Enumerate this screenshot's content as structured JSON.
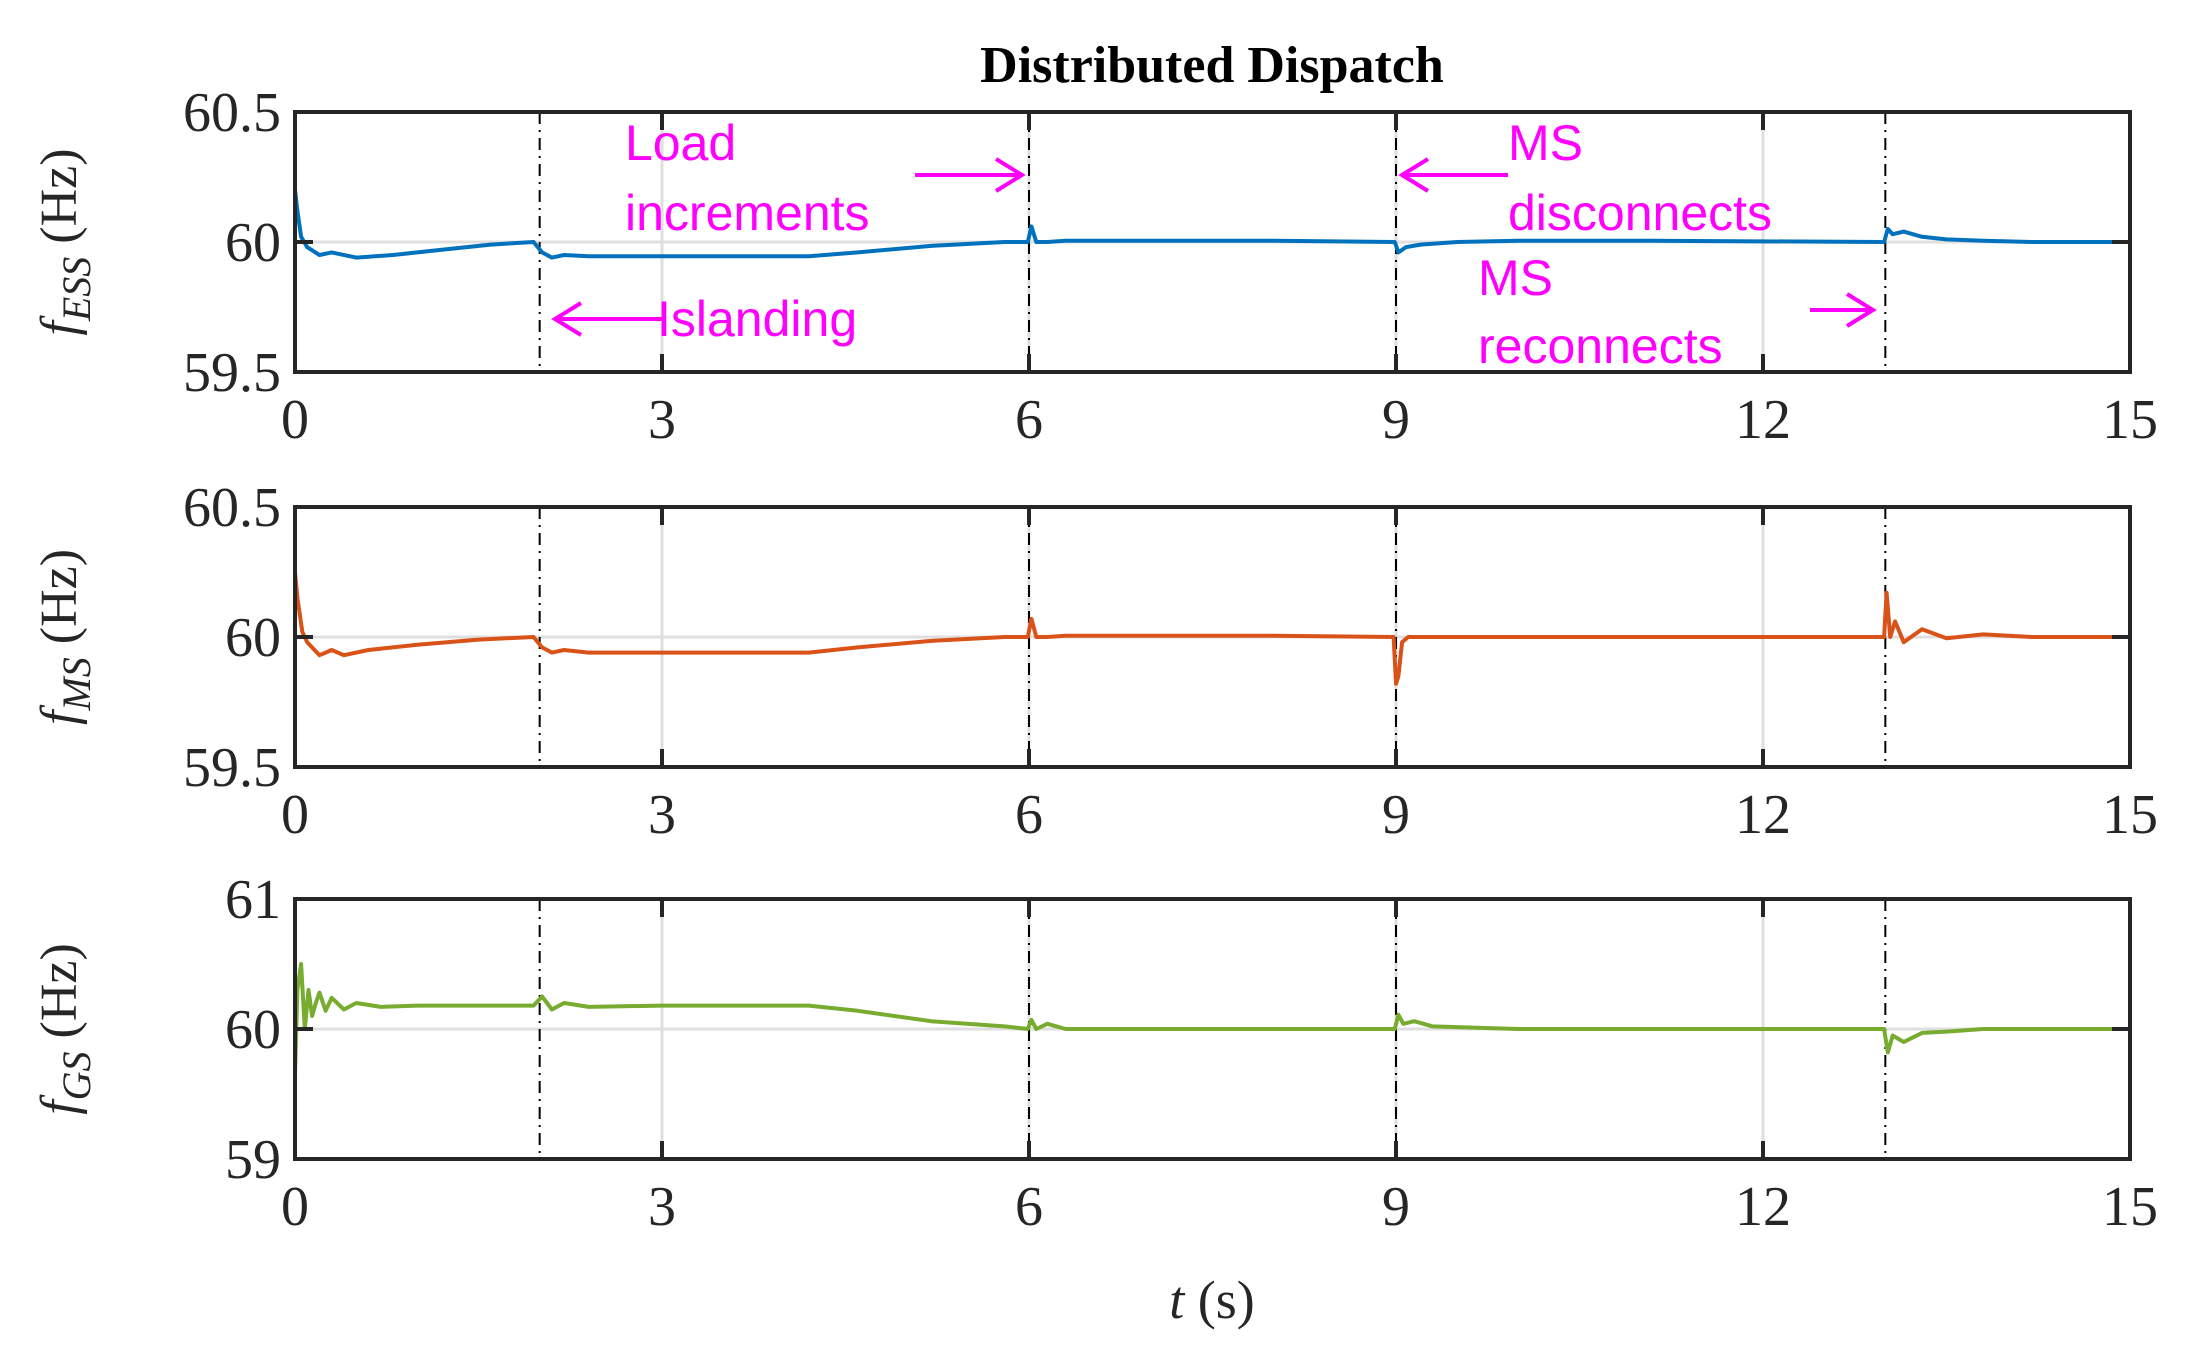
{
  "title": "Distributed Dispatch",
  "xlabel": {
    "var": "t",
    "unit": " (s)"
  },
  "colors": {
    "ess": "#0072BD",
    "ms": "#D95319",
    "gs": "#77AC30",
    "annotation": "#FF00FF",
    "axis": "#262626",
    "grid": "#DFDFDF"
  },
  "chart_data": [
    {
      "type": "line",
      "name": "ess",
      "ylabel": {
        "var": "f",
        "sub": "ESS",
        "unit": " (Hz)"
      },
      "xlim": [
        0,
        15
      ],
      "ylim": [
        59.5,
        60.5
      ],
      "xticks": [
        "0",
        "3",
        "6",
        "9",
        "12",
        "15"
      ],
      "yticks": [
        "59.5",
        "60",
        "60.5"
      ],
      "event_lines_x": [
        2,
        6,
        9,
        13
      ],
      "series": [
        {
          "color_key": "ess",
          "x": [
            0,
            0.02,
            0.05,
            0.1,
            0.2,
            0.3,
            0.5,
            0.8,
            1.2,
            1.6,
            1.95,
            2.02,
            2.1,
            2.2,
            2.4,
            3,
            4.2,
            4.6,
            5.2,
            5.8,
            5.99,
            6.02,
            6.06,
            6.15,
            6.3,
            7,
            8,
            8.99,
            9.02,
            9.08,
            9.2,
            9.5,
            10,
            11,
            12.99,
            13.02,
            13.06,
            13.15,
            13.3,
            13.5,
            13.8,
            14.2,
            15
          ],
          "y": [
            60.2,
            60.12,
            60.02,
            59.98,
            59.95,
            59.96,
            59.94,
            59.95,
            59.97,
            59.99,
            60.0,
            59.96,
            59.94,
            59.95,
            59.945,
            59.945,
            59.945,
            59.96,
            59.985,
            60.0,
            60.0,
            60.06,
            60.0,
            60.0,
            60.005,
            60.005,
            60.005,
            60.0,
            59.96,
            59.98,
            59.99,
            60.0,
            60.005,
            60.005,
            60.0,
            60.05,
            60.03,
            60.04,
            60.02,
            60.01,
            60.005,
            60.0,
            60.0
          ]
        }
      ],
      "annotations": [
        {
          "lines": [
            "Load",
            "increments"
          ],
          "arrow": "right",
          "x_data": 6
        },
        {
          "lines": [
            "Islanding"
          ],
          "arrow": "left",
          "x_data": 2
        },
        {
          "lines": [
            "MS",
            "disconnects"
          ],
          "arrow": "left",
          "x_data": 9
        },
        {
          "lines": [
            "MS",
            "reconnects"
          ],
          "arrow": "right",
          "x_data": 13
        }
      ]
    },
    {
      "type": "line",
      "name": "ms",
      "ylabel": {
        "var": "f",
        "sub": "MS",
        "unit": " (Hz)"
      },
      "xlim": [
        0,
        15
      ],
      "ylim": [
        59.5,
        60.5
      ],
      "xticks": [
        "0",
        "3",
        "6",
        "9",
        "12",
        "15"
      ],
      "yticks": [
        "59.5",
        "60",
        "60.5"
      ],
      "event_lines_x": [
        2,
        6,
        9,
        13
      ],
      "series": [
        {
          "color_key": "ms",
          "x": [
            0,
            0.02,
            0.06,
            0.1,
            0.2,
            0.3,
            0.4,
            0.6,
            1.0,
            1.5,
            1.95,
            2.02,
            2.1,
            2.2,
            2.4,
            3,
            4.2,
            4.6,
            5.2,
            5.8,
            5.99,
            6.02,
            6.06,
            6.15,
            6.3,
            7,
            8,
            8.98,
            9.0,
            9.02,
            9.05,
            9.1,
            10,
            12.99,
            13.01,
            13.04,
            13.08,
            13.15,
            13.3,
            13.5,
            13.8,
            14.2,
            15
          ],
          "y": [
            60.25,
            60.15,
            60.02,
            59.98,
            59.93,
            59.95,
            59.93,
            59.95,
            59.97,
            59.99,
            60.0,
            59.96,
            59.94,
            59.95,
            59.94,
            59.94,
            59.94,
            59.96,
            59.985,
            60.0,
            60.0,
            60.07,
            60.0,
            60.0,
            60.005,
            60.005,
            60.005,
            60.0,
            59.82,
            59.85,
            59.98,
            60.0,
            60.0,
            60.0,
            60.17,
            60.0,
            60.06,
            59.98,
            60.03,
            59.995,
            60.01,
            60.0,
            60.0
          ]
        }
      ]
    },
    {
      "type": "line",
      "name": "gs",
      "ylabel": {
        "var": "f",
        "sub": "GS",
        "unit": " (Hz)"
      },
      "xlim": [
        0,
        15
      ],
      "ylim": [
        59,
        61
      ],
      "xticks": [
        "0",
        "3",
        "6",
        "9",
        "12",
        "15"
      ],
      "yticks": [
        "59",
        "60",
        "61"
      ],
      "event_lines_x": [
        2,
        6,
        9,
        13
      ],
      "series": [
        {
          "color_key": "gs",
          "x": [
            0,
            0.02,
            0.05,
            0.08,
            0.11,
            0.14,
            0.17,
            0.2,
            0.25,
            0.3,
            0.4,
            0.5,
            0.7,
            1.0,
            1.5,
            1.95,
            2.02,
            2.1,
            2.2,
            2.4,
            3,
            4.2,
            4.6,
            5.2,
            5.8,
            5.99,
            6.02,
            6.06,
            6.15,
            6.3,
            7,
            8,
            8.99,
            9.02,
            9.06,
            9.15,
            9.3,
            10,
            12.99,
            13.02,
            13.06,
            13.15,
            13.3,
            13.5,
            13.8,
            14.2,
            15
          ],
          "y": [
            59.65,
            60.3,
            60.5,
            60.0,
            60.3,
            60.1,
            60.2,
            60.28,
            60.14,
            60.24,
            60.15,
            60.2,
            60.17,
            60.18,
            60.18,
            60.18,
            60.25,
            60.15,
            60.2,
            60.17,
            60.18,
            60.18,
            60.14,
            60.06,
            60.02,
            60.0,
            60.07,
            60.0,
            60.04,
            60.0,
            60.0,
            60.0,
            60.0,
            60.11,
            60.04,
            60.06,
            60.02,
            60.0,
            60.0,
            59.82,
            59.95,
            59.9,
            59.97,
            59.98,
            60.0,
            60.0,
            60.0
          ]
        }
      ]
    }
  ]
}
